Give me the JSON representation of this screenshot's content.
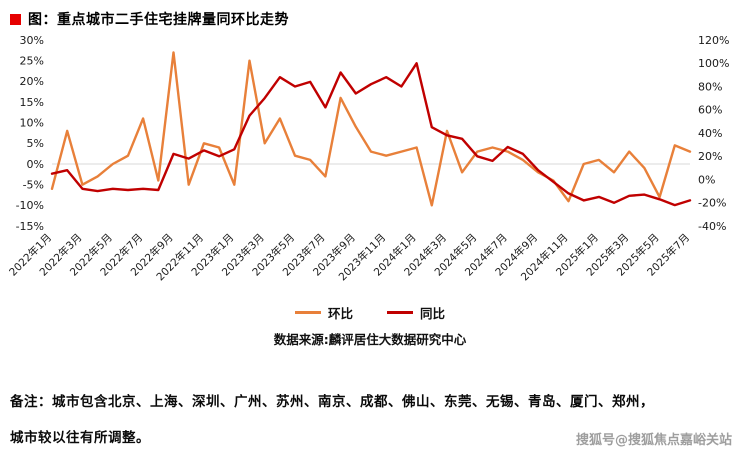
{
  "page": {
    "title": "图：重点城市二手住宅挂牌量同环比走势",
    "source": "数据来源:麟评居住大数据研究中心",
    "note_line1": "备注：城市包含北京、上海、深圳、广州、苏州、南京、成都、佛山、东莞、无锡、青岛、厦门、郑州，",
    "note_line2": "城市较以往有所调整。",
    "watermark": "搜狐号@搜狐焦点嘉峪关站"
  },
  "colors": {
    "title_bullet": "#e60000",
    "mom_line": "#e8803a",
    "yoy_line": "#c00000",
    "zero_line": "#d9d9d9"
  },
  "chart_data": {
    "type": "line",
    "title": "重点城市二手住宅挂牌量同环比走势",
    "grid": false,
    "legend_position": "bottom",
    "x": [
      "2022年1月",
      "2022年2月",
      "2022年3月",
      "2022年4月",
      "2022年5月",
      "2022年6月",
      "2022年7月",
      "2022年8月",
      "2022年9月",
      "2022年10月",
      "2022年11月",
      "2022年12月",
      "2023年1月",
      "2023年2月",
      "2023年3月",
      "2023年4月",
      "2023年5月",
      "2023年6月",
      "2023年7月",
      "2023年8月",
      "2023年9月",
      "2023年10月",
      "2023年11月",
      "2023年12月",
      "2024年1月",
      "2024年2月",
      "2024年3月",
      "2024年4月",
      "2024年5月",
      "2024年6月",
      "2024年7月",
      "2024年8月",
      "2024年9月",
      "2024年10月",
      "2024年11月",
      "2024年12月",
      "2025年1月",
      "2025年2月",
      "2025年3月",
      "2025年4月",
      "2025年5月",
      "2025年6月",
      "2025年7月"
    ],
    "x_tick_every": 2,
    "left_axis": {
      "min": -15,
      "max": 30,
      "step": 5,
      "unit": "%"
    },
    "right_axis": {
      "min": -40,
      "max": 120,
      "step": 20,
      "unit": "%"
    },
    "series": [
      {
        "name": "环比",
        "axis": "left",
        "color": "#e8803a",
        "values": [
          -6,
          8,
          -5,
          -3,
          0,
          2,
          11,
          -4,
          27,
          -5,
          5,
          4,
          -5,
          25,
          5,
          11,
          2,
          1,
          -3,
          16,
          9,
          3,
          2,
          3,
          4,
          -10,
          8,
          -2,
          3,
          4,
          3,
          1,
          -2,
          -4,
          -9,
          0,
          1,
          -2,
          3,
          -1,
          -8,
          4.5,
          3
        ]
      },
      {
        "name": "同比",
        "axis": "right",
        "color": "#c00000",
        "values": [
          5,
          8,
          -8,
          -10,
          -8,
          -9,
          -8,
          -9,
          22,
          18,
          25,
          20,
          26,
          55,
          70,
          88,
          80,
          84,
          62,
          92,
          74,
          82,
          88,
          80,
          100,
          45,
          38,
          35,
          20,
          16,
          28,
          22,
          8,
          -2,
          -12,
          -18,
          -15,
          -20,
          -14,
          -13,
          -17,
          -22,
          -18
        ]
      }
    ]
  }
}
